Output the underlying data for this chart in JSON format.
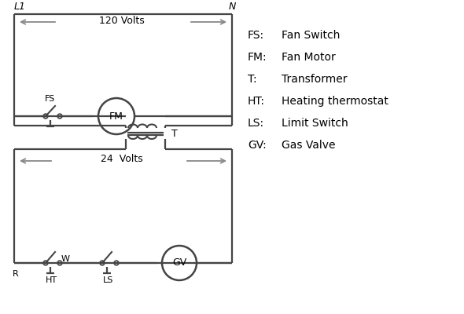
{
  "bg_color": "#ffffff",
  "line_color": "#444444",
  "arrow_color": "#888888",
  "text_color": "#000000",
  "legend": [
    [
      "FS:  ",
      "Fan Switch"
    ],
    [
      "FM:  ",
      "Fan Motor"
    ],
    [
      "T:     ",
      "Transformer"
    ],
    [
      "HT:  ",
      "Heating thermostat"
    ],
    [
      "LS:  ",
      "Limit Switch"
    ],
    [
      "GV:  ",
      "Gas Valve"
    ]
  ],
  "label_L1": "L1",
  "label_N": "N",
  "label_120V": "120 Volts",
  "label_24V": "24  Volts",
  "label_T": "T",
  "label_R": "R",
  "label_W": "W",
  "label_HT": "HT",
  "label_LS": "LS",
  "label_FS": "FS",
  "label_FM": "FM",
  "label_GV": "GV"
}
